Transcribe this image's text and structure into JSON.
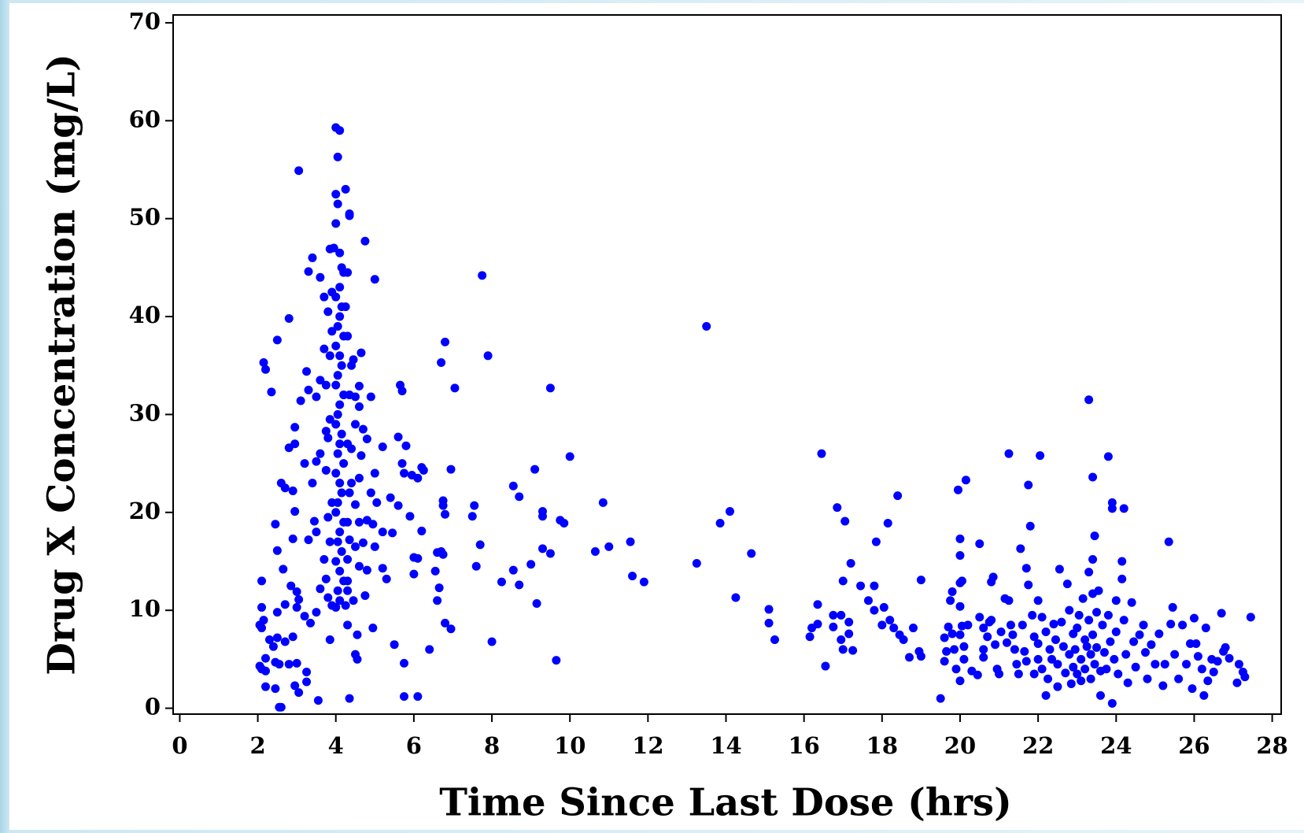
{
  "chart_data": {
    "type": "scatter",
    "x_label": "Time Since Last Dose (hrs)",
    "y_label": "Drug X Concentration (mg/L)",
    "xlim": [
      -0.17,
      28.23
    ],
    "ylim": [
      -0.6,
      70.8
    ],
    "xticks": [
      0,
      2,
      4,
      6,
      8,
      10,
      12,
      14,
      16,
      18,
      20,
      22,
      24,
      26,
      28
    ],
    "yticks": [
      0,
      10,
      20,
      30,
      40,
      50,
      60,
      70
    ],
    "color": "#0000ff",
    "x": [
      4.0,
      4.1,
      4.05,
      4.25,
      4.0,
      4.05,
      4.35,
      4.0,
      3.95,
      4.1,
      4.15,
      4.2,
      4.1,
      4.0,
      4.15,
      4.1,
      4.05,
      4.2,
      4.0,
      4.1,
      4.15,
      4.05,
      4.0,
      4.2,
      4.1,
      4.05,
      4.0,
      4.15,
      4.1,
      4.05,
      4.2,
      4.0,
      4.1,
      4.15,
      4.05,
      4.0,
      4.2,
      4.1,
      4.05,
      4.15,
      4.0,
      4.1,
      4.2,
      4.05,
      4.1,
      4.0,
      2.15,
      2.2,
      2.35,
      2.5,
      2.8,
      3.05,
      3.3,
      3.4,
      3.6,
      3.7,
      3.85,
      4.35,
      4.75,
      5.0,
      4.45,
      4.65,
      3.25,
      3.3,
      3.5,
      3.1,
      2.95,
      2.95,
      2.8,
      2.6,
      2.7,
      2.9,
      2.95,
      3.2,
      3.5,
      3.6,
      3.75,
      3.4,
      3.45,
      3.5,
      3.3,
      2.45,
      2.9,
      2.5,
      2.65,
      2.85,
      3.0,
      3.05,
      3.2,
      3.35,
      3.0,
      2.7,
      2.5,
      2.1,
      2.1,
      2.05,
      2.1,
      2.15,
      2.3,
      2.4,
      2.5,
      2.7,
      2.9,
      2.05,
      2.1,
      2.2,
      2.45,
      2.55,
      2.8,
      3.0,
      2.2,
      2.45,
      2.95,
      3.05,
      3.25,
      3.25,
      2.55,
      2.6,
      3.55,
      4.35,
      2.2,
      3.85,
      4.3,
      4.55,
      4.5,
      4.55,
      4.45,
      4.75,
      4.95,
      4.6,
      4.8,
      5.2,
      5.3,
      5.5,
      5.75,
      5.75,
      6.1,
      5.0,
      5.2,
      5.45,
      5.4,
      5.6,
      5.7,
      5.75,
      5.6,
      5.65,
      5.7,
      5.8,
      5.2,
      5.0,
      4.9,
      5.05,
      4.8,
      4.6,
      4.5,
      4.7,
      4.9,
      4.6,
      4.8,
      4.95,
      4.7,
      4.5,
      4.3,
      4.5,
      4.4,
      4.6,
      4.65,
      4.4,
      4.35,
      4.5,
      4.6,
      3.85,
      3.8,
      3.75,
      3.9,
      3.8,
      3.85,
      3.7,
      3.75,
      3.8,
      3.6,
      3.9,
      3.5,
      3.9,
      3.85,
      3.7,
      3.6,
      3.75,
      3.8,
      3.9,
      4.3,
      4.25,
      4.3,
      4.4,
      4.3,
      4.35,
      4.3,
      4.35,
      4.3,
      4.3,
      4.25,
      5.9,
      6.0,
      6.0,
      6.1,
      6.2,
      6.25,
      6.1,
      5.95,
      6.2,
      6.4,
      6.55,
      6.6,
      6.6,
      6.65,
      6.7,
      6.75,
      6.75,
      6.75,
      6.8,
      6.7,
      6.8,
      7.05,
      6.95,
      6.8,
      6.95,
      7.55,
      7.5,
      7.6,
      7.75,
      7.7,
      7.9,
      8.0,
      8.25,
      8.55,
      8.55,
      8.7,
      8.7,
      9.0,
      9.1,
      9.15,
      9.3,
      9.3,
      9.3,
      9.5,
      9.5,
      9.65,
      9.75,
      9.85,
      10.0,
      10.65,
      10.85,
      11.0,
      11.55,
      11.6,
      11.9,
      13.25,
      13.5,
      13.85,
      14.1,
      14.25,
      14.65,
      15.1,
      15.1,
      15.25,
      16.15,
      16.2,
      16.35,
      16.35,
      16.45,
      16.55,
      16.75,
      16.75,
      16.85,
      16.95,
      16.95,
      17.05,
      17.0,
      17.0,
      17.15,
      17.15,
      17.2,
      17.25,
      17.45,
      17.65,
      17.8,
      17.8,
      17.85,
      18.0,
      18.05,
      18.15,
      18.2,
      18.3,
      18.4,
      18.45,
      18.55,
      18.7,
      18.8,
      18.95,
      19.0,
      19.0,
      19.5,
      19.6,
      19.6,
      19.65,
      19.7,
      19.75,
      19.8,
      19.8,
      19.85,
      19.9,
      19.95,
      20.0,
      20.0,
      20.0,
      20.05,
      20.0,
      20.05,
      20.0,
      20.0,
      20.1,
      20.1,
      20.15,
      20.2,
      20.3,
      20.45,
      20.5,
      20.5,
      20.6,
      20.6,
      20.6,
      20.7,
      20.75,
      20.8,
      20.8,
      20.85,
      20.9,
      20.95,
      21.0,
      21.05,
      21.15,
      21.2,
      21.25,
      21.25,
      21.3,
      21.35,
      21.4,
      21.45,
      21.5,
      21.55,
      21.6,
      21.65,
      21.7,
      21.7,
      21.75,
      21.75,
      21.8,
      21.85,
      21.9,
      21.9,
      22.0,
      22.0,
      22.0,
      22.05,
      22.1,
      22.1,
      22.2,
      22.2,
      22.25,
      22.3,
      22.35,
      22.4,
      22.45,
      22.5,
      22.5,
      22.55,
      22.6,
      22.65,
      22.7,
      22.75,
      22.8,
      22.8,
      22.85,
      22.9,
      22.9,
      22.95,
      23.0,
      23.0,
      23.05,
      23.1,
      23.1,
      23.15,
      23.2,
      23.2,
      23.25,
      23.3,
      23.3,
      23.3,
      23.35,
      23.35,
      23.4,
      23.4,
      23.4,
      23.4,
      23.45,
      23.45,
      23.5,
      23.5,
      23.55,
      23.6,
      23.6,
      23.65,
      23.7,
      23.75,
      23.8,
      23.8,
      23.85,
      23.9,
      23.9,
      23.9,
      23.95,
      24.0,
      24.0,
      24.05,
      24.15,
      24.15,
      24.2,
      24.2,
      24.25,
      24.3,
      24.4,
      24.45,
      24.5,
      24.6,
      24.7,
      24.75,
      24.8,
      24.9,
      25.0,
      25.1,
      25.2,
      25.25,
      25.35,
      25.4,
      25.45,
      25.5,
      25.6,
      25.7,
      25.8,
      25.9,
      25.95,
      26.0,
      26.05,
      26.1,
      26.2,
      26.25,
      26.3,
      26.35,
      26.45,
      26.5,
      26.6,
      26.7,
      26.75,
      26.8,
      26.9,
      27.1,
      27.15,
      27.25,
      27.3,
      27.45
    ],
    "values": [
      59.3,
      59,
      56.3,
      53,
      52.5,
      51.5,
      50.5,
      49.5,
      47,
      46.5,
      45,
      44.5,
      43,
      42,
      41,
      40,
      39,
      38,
      37,
      36,
      35,
      34,
      33,
      32,
      31,
      30,
      29,
      28,
      27,
      26,
      25,
      24,
      23,
      22,
      21,
      20,
      19,
      18,
      17,
      16,
      15,
      14,
      13,
      12,
      11,
      10.3,
      35.3,
      34.6,
      32.3,
      37.6,
      39.8,
      54.9,
      44.6,
      46,
      44,
      42,
      46.9,
      50.3,
      47.7,
      43.8,
      35.6,
      36.3,
      34.4,
      32.5,
      31.8,
      31.4,
      28.7,
      27,
      26.6,
      23,
      22.5,
      22.2,
      20.1,
      25,
      25.2,
      26,
      24.3,
      23,
      19.1,
      18,
      17.2,
      18.8,
      17.3,
      16.1,
      14.2,
      12.5,
      11.9,
      11.1,
      9.4,
      8.7,
      10.3,
      10.6,
      9.8,
      13,
      10.3,
      8.5,
      8.2,
      9,
      7,
      6.3,
      7.2,
      6.8,
      7.3,
      4.3,
      4,
      3.8,
      4.7,
      4.5,
      4.5,
      4.6,
      2.2,
      2,
      2.3,
      1.6,
      2.7,
      3.7,
      0.1,
      0.1,
      0.8,
      1,
      5.1,
      7,
      8.5,
      7.5,
      5.5,
      5,
      11,
      11.5,
      8.2,
      14.5,
      14.1,
      14.3,
      13.2,
      6.5,
      4.6,
      1.2,
      1.2,
      16.5,
      18,
      17.9,
      21.5,
      20.7,
      25,
      24,
      27.7,
      33,
      32.4,
      26.8,
      26.7,
      24,
      22,
      21,
      27.5,
      30.8,
      29,
      28.5,
      31.8,
      19,
      19.2,
      18.8,
      16.9,
      16.5,
      15.2,
      20.8,
      23,
      23.5,
      25.8,
      26.5,
      32,
      31.8,
      32.9,
      29.5,
      27.6,
      28.3,
      21,
      19.5,
      17,
      15.2,
      13.2,
      11.3,
      12.2,
      10.5,
      9.8,
      38.5,
      36,
      36.7,
      33.5,
      33,
      40.5,
      42.5,
      44.5,
      41,
      38,
      35,
      27,
      22,
      19,
      17.2,
      13,
      12,
      10.5,
      19.6,
      15.4,
      13.7,
      15.3,
      18.1,
      24.3,
      23.5,
      23.8,
      24.6,
      6,
      14,
      15.9,
      11,
      12.3,
      16,
      15.7,
      20.7,
      21.2,
      19.8,
      35.3,
      37.4,
      32.7,
      24.4,
      8.7,
      8.1,
      20.7,
      19.6,
      14.5,
      44.2,
      16.7,
      36,
      6.8,
      12.9,
      14.1,
      22.7,
      21.6,
      12.6,
      14.7,
      24.4,
      10.7,
      20.1,
      19.6,
      16.3,
      15.8,
      32.7,
      4.9,
      19.2,
      18.9,
      25.7,
      16,
      21,
      16.5,
      17,
      13.5,
      12.9,
      14.8,
      39,
      18.9,
      20.1,
      11.3,
      15.8,
      8.7,
      10.1,
      7,
      7.3,
      8.2,
      8.6,
      10.6,
      26,
      4.3,
      8.3,
      9.5,
      20.5,
      9.5,
      7,
      19.1,
      13,
      6,
      8.8,
      7.6,
      14.8,
      5.9,
      12.5,
      11,
      12.5,
      10,
      17,
      8.5,
      10.3,
      18.9,
      9,
      8.2,
      21.7,
      7.5,
      7,
      5.2,
      8.2,
      5.8,
      13.1,
      5.3,
      1,
      7.2,
      4.8,
      5.8,
      8.3,
      11,
      11.9,
      7.6,
      6,
      4,
      22.3,
      17.3,
      15.6,
      12.8,
      13,
      10.4,
      8.4,
      7.5,
      2.8,
      6.3,
      5,
      23.3,
      8.5,
      3.8,
      3.4,
      16.8,
      9.3,
      8.2,
      6,
      5.2,
      7.3,
      8.8,
      12.9,
      9,
      13.4,
      6.5,
      4,
      3.5,
      7.8,
      11.2,
      6.7,
      26,
      11,
      8.5,
      7.5,
      6,
      4.5,
      3.5,
      16.3,
      8.5,
      5.8,
      4.8,
      14.3,
      22.8,
      12.6,
      18.6,
      9.5,
      7.3,
      3.5,
      11,
      6.6,
      5,
      25.8,
      9.3,
      4,
      7.8,
      1.3,
      3,
      6,
      5,
      8.6,
      7,
      4.5,
      2.2,
      14.2,
      8.8,
      6.3,
      3.6,
      12.7,
      10,
      5.5,
      2.5,
      7.6,
      4.2,
      6,
      8.2,
      3.5,
      9.5,
      5,
      2.8,
      11.2,
      7,
      4,
      6.3,
      31.5,
      13.9,
      9,
      5.5,
      3,
      23.6,
      15.2,
      11.7,
      7.5,
      17.6,
      4.5,
      9.8,
      6.2,
      12,
      3.8,
      1.3,
      8.5,
      5.7,
      4,
      25.7,
      9.5,
      6.8,
      21,
      20.4,
      0.5,
      5,
      11,
      7.8,
      3.5,
      15,
      13.2,
      20.4,
      9,
      5.5,
      2.6,
      10.8,
      6.8,
      4.2,
      7.5,
      8.5,
      5.7,
      3,
      6.5,
      4.5,
      7.6,
      2.3,
      4.5,
      17,
      8.6,
      10.3,
      5.5,
      3,
      8.5,
      4.5,
      6.6,
      2,
      9.2,
      6.6,
      5.3,
      4,
      1.3,
      8.2,
      2.8,
      5,
      3.7,
      4.8,
      9.7,
      5.8,
      6.2,
      5.1,
      2.6,
      4.5,
      3.7,
      3.2,
      9.3
    ]
  }
}
